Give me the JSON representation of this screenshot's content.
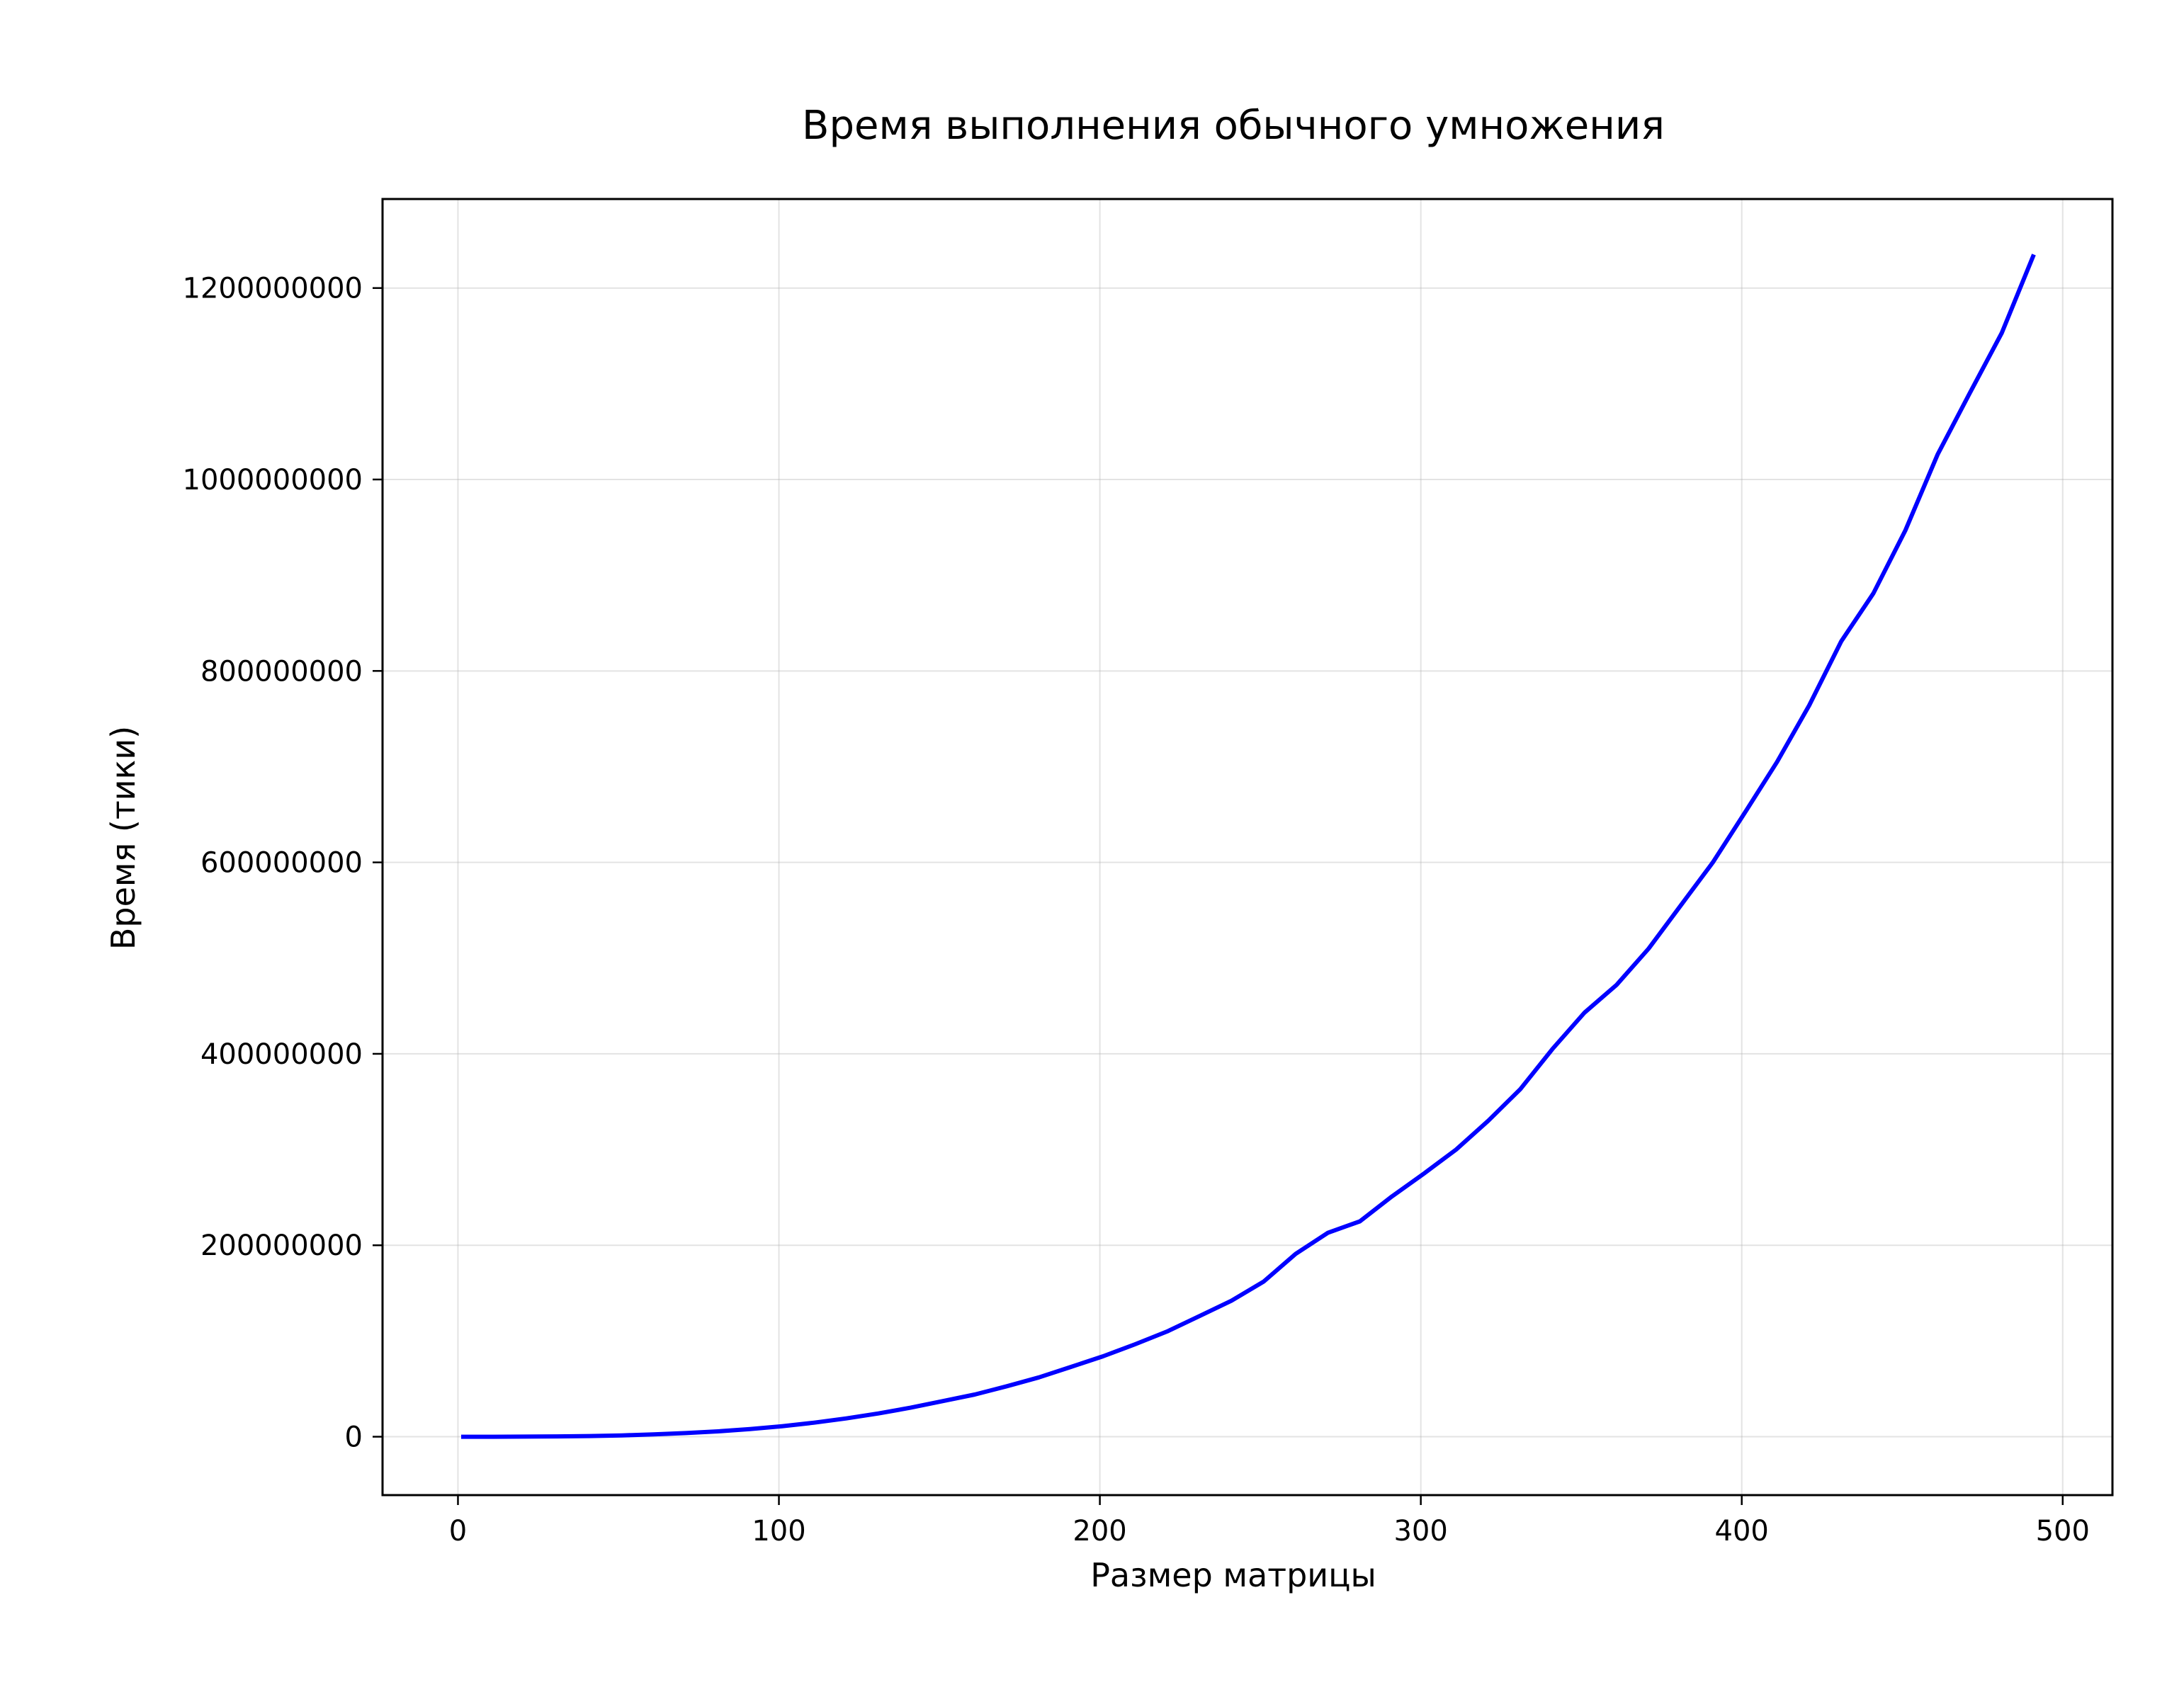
{
  "chart_data": {
    "type": "line",
    "title": "Время выполнения обычного умножения",
    "xlabel": "Размер матрицы",
    "ylabel": "Время (тики)",
    "xlim": [
      -23.5,
      515.5
    ],
    "ylim": [
      -61000000,
      1293000000
    ],
    "grid": true,
    "x_ticks": [
      0,
      100,
      200,
      300,
      400,
      500
    ],
    "y_ticks": [
      0,
      200000000,
      400000000,
      600000000,
      800000000,
      1000000000,
      1200000000
    ],
    "x_tick_labels": [
      "0",
      "100",
      "200",
      "300",
      "400",
      "500"
    ],
    "y_tick_labels": [
      "0",
      "200000000",
      "400000000",
      "600000000",
      "800000000",
      "1000000000",
      "1200000000"
    ],
    "series": [
      {
        "name": "",
        "color": "#0000ff",
        "x": [
          1,
          11,
          21,
          31,
          41,
          51,
          61,
          71,
          81,
          91,
          101,
          111,
          121,
          131,
          141,
          151,
          161,
          171,
          181,
          191,
          201,
          211,
          221,
          231,
          241,
          251,
          261,
          271,
          281,
          291,
          301,
          311,
          321,
          331,
          341,
          351,
          361,
          371,
          381,
          391,
          401,
          411,
          421,
          431,
          441,
          451,
          461,
          471,
          481,
          491
        ],
        "y": [
          0,
          0,
          100000,
          300000,
          700000,
          1400000,
          2400000,
          3800000,
          5600000,
          8000000,
          11000000,
          14700000,
          19100000,
          24300000,
          30300000,
          37200000,
          44100000,
          52700000,
          62000000,
          72900000,
          84000000,
          96600000,
          110000000,
          126000000,
          142000000,
          162000000,
          191000000,
          213000000,
          225000000,
          251000000,
          275000000,
          300000000,
          330000000,
          363000000,
          405000000,
          443000000,
          472000000,
          510000000,
          555000000,
          600000000,
          652000000,
          705000000,
          764000000,
          831000000,
          881000000,
          947000000,
          1026000000,
          1090000000,
          1153000000,
          1235000000
        ]
      }
    ]
  }
}
